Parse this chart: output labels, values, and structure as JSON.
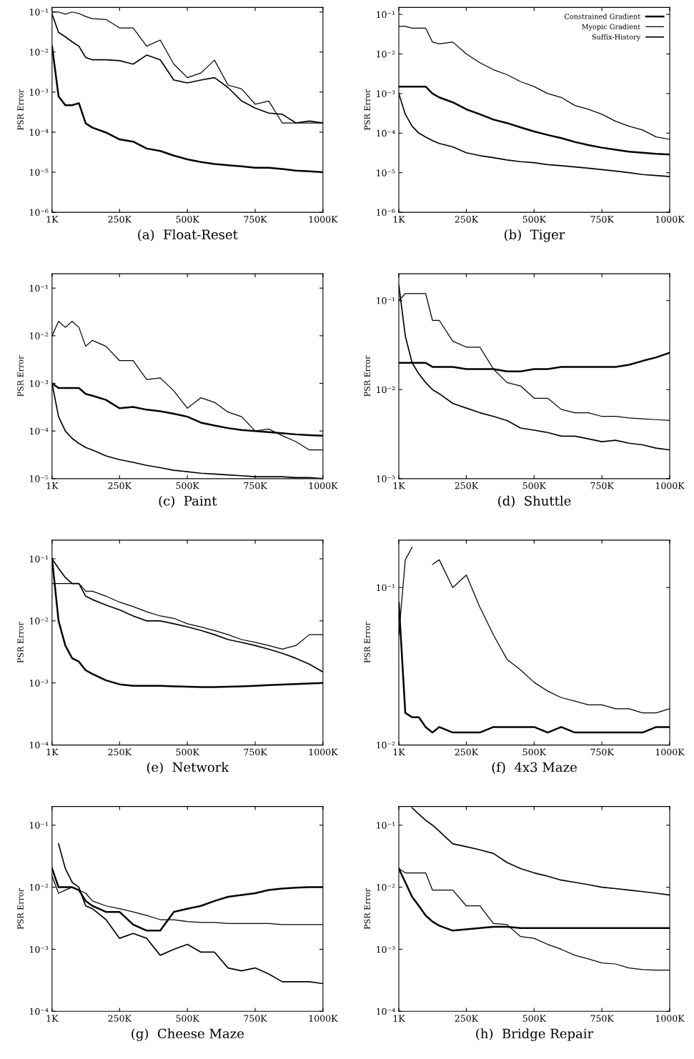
{
  "chart_data": [
    {
      "type": "line",
      "title": "(a)  Float-Reset",
      "ylabel": "PSR Error",
      "log": "y",
      "grid": false,
      "legend": false,
      "xlim": [
        1,
        1000
      ],
      "ylim": [
        1e-06,
        0.13
      ],
      "xticks": [
        {
          "value": 1,
          "label": "1K"
        },
        {
          "value": 250,
          "label": "250K"
        },
        {
          "value": 500,
          "label": "500K"
        },
        {
          "value": 750,
          "label": "750K"
        },
        {
          "value": 1000,
          "label": "1000K"
        }
      ],
      "yticks": [
        {
          "value": 1e-06,
          "label": "10⁻⁶"
        },
        {
          "value": 1e-05,
          "label": "10⁻⁵"
        },
        {
          "value": 0.0001,
          "label": "10⁻⁴"
        },
        {
          "value": 0.001,
          "label": "10⁻³"
        },
        {
          "value": 0.01,
          "label": "10⁻²"
        },
        {
          "value": 0.1,
          "label": "10⁻¹"
        }
      ],
      "x": [
        1,
        25,
        50,
        75,
        100,
        125,
        150,
        200,
        250,
        300,
        350,
        400,
        450,
        500,
        550,
        600,
        650,
        700,
        750,
        800,
        850,
        900,
        950,
        1000
      ],
      "series": [
        {
          "color": "#000000",
          "line_style": "solid",
          "values": [
            0.014,
            0.00079,
            0.00047,
            0.00047,
            0.00053,
            0.000166,
            0.00013,
            9.8e-05,
            6.6e-05,
            5.8e-05,
            3.9e-05,
            3.4e-05,
            2.6e-05,
            2.1e-05,
            1.8e-05,
            1.6e-05,
            1.5e-05,
            1.4e-05,
            1.3e-05,
            1.3e-05,
            1.2e-05,
            1.1e-05,
            1.05e-05,
            1e-05
          ]
        },
        {
          "color": "#000000",
          "line_style": "solid",
          "values": [
            0.1,
            0.1,
            0.088,
            0.1,
            0.092,
            0.077,
            0.068,
            0.065,
            0.04,
            0.04,
            0.014,
            0.02,
            0.005,
            0.0023,
            0.003,
            0.0063,
            0.0015,
            0.0012,
            0.0005,
            0.0006,
            0.00017,
            0.00017,
            0.00017,
            0.00017
          ]
        },
        {
          "color": "#000000",
          "line_style": "solid",
          "values": [
            0.088,
            0.031,
            0.024,
            0.018,
            0.014,
            0.0073,
            0.0064,
            0.0064,
            0.0061,
            0.005,
            0.0084,
            0.0064,
            0.002,
            0.0017,
            0.002,
            0.0023,
            0.0013,
            0.0006,
            0.0004,
            0.0003,
            0.00028,
            0.00017,
            0.00019,
            0.00017
          ]
        }
      ]
    },
    {
      "type": "line",
      "title": "(b)  Tiger",
      "ylabel": "PSR Error",
      "log": "y",
      "grid": false,
      "legend": "top right",
      "xlim": [
        1,
        1000
      ],
      "ylim": [
        1e-06,
        0.15
      ],
      "xticks": [
        {
          "value": 1,
          "label": "1K"
        },
        {
          "value": 250,
          "label": "250K"
        },
        {
          "value": 500,
          "label": "500K"
        },
        {
          "value": 750,
          "label": "750K"
        },
        {
          "value": 1000,
          "label": "1000K"
        }
      ],
      "yticks": [
        {
          "value": 1e-06,
          "label": "10⁻⁶"
        },
        {
          "value": 1e-05,
          "label": "10⁻⁵"
        },
        {
          "value": 0.0001,
          "label": "10⁻⁴"
        },
        {
          "value": 0.001,
          "label": "10⁻³"
        },
        {
          "value": 0.01,
          "label": "10⁻²"
        },
        {
          "value": 0.1,
          "label": "10⁻¹"
        }
      ],
      "x": [
        1,
        25,
        50,
        75,
        100,
        125,
        150,
        200,
        250,
        300,
        350,
        400,
        450,
        500,
        550,
        600,
        650,
        700,
        750,
        800,
        850,
        900,
        950,
        1000
      ],
      "series": [
        {
          "name": "Constrained Gradient",
          "color": "#000000",
          "line_style": "solid",
          "values": [
            0.0015,
            0.0015,
            0.0015,
            0.0015,
            0.0015,
            0.001,
            0.0008,
            0.0006,
            0.0004,
            0.0003,
            0.00022,
            0.00018,
            0.00014,
            0.00011,
            9e-05,
            7.5e-05,
            6e-05,
            5e-05,
            4.3e-05,
            3.8e-05,
            3.4e-05,
            3.2e-05,
            3e-05,
            2.9e-05
          ]
        },
        {
          "name": "Myopic Gradient",
          "color": "#000000",
          "line_style": "solid",
          "values": [
            0.05,
            0.05,
            0.045,
            0.045,
            0.045,
            0.02,
            0.018,
            0.02,
            0.01,
            0.006,
            0.004,
            0.003,
            0.002,
            0.0015,
            0.001,
            0.0008,
            0.0005,
            0.0004,
            0.0003,
            0.0002,
            0.00015,
            0.00012,
            8e-05,
            7e-05
          ]
        },
        {
          "name": "Suffix-History",
          "color": "#000000",
          "line_style": "solid",
          "values": [
            0.001,
            0.0003,
            0.00015,
            0.0001,
            8e-05,
            6.5e-05,
            5.5e-05,
            4.5e-05,
            3.2e-05,
            2.7e-05,
            2.4e-05,
            2.1e-05,
            1.9e-05,
            1.8e-05,
            1.6e-05,
            1.5e-05,
            1.4e-05,
            1.3e-05,
            1.2e-05,
            1.1e-05,
            1e-05,
            9e-06,
            8.5e-06,
            8e-06
          ]
        }
      ]
    },
    {
      "type": "line",
      "title": "(c)  Paint",
      "ylabel": "PSR Error",
      "log": "y",
      "grid": false,
      "legend": false,
      "xlim": [
        1,
        1000
      ],
      "ylim": [
        1e-05,
        0.2
      ],
      "xticks": [
        {
          "value": 1,
          "label": "1K"
        },
        {
          "value": 250,
          "label": "250K"
        },
        {
          "value": 500,
          "label": "500K"
        },
        {
          "value": 750,
          "label": "750K"
        },
        {
          "value": 1000,
          "label": "1000K"
        }
      ],
      "yticks": [
        {
          "value": 1e-05,
          "label": "10⁻⁵"
        },
        {
          "value": 0.0001,
          "label": "10⁻⁴"
        },
        {
          "value": 0.001,
          "label": "10⁻³"
        },
        {
          "value": 0.01,
          "label": "10⁻²"
        },
        {
          "value": 0.1,
          "label": "10⁻¹"
        }
      ],
      "x": [
        1,
        25,
        50,
        75,
        100,
        125,
        150,
        200,
        250,
        300,
        350,
        400,
        450,
        500,
        550,
        600,
        650,
        700,
        750,
        800,
        850,
        900,
        950,
        1000
      ],
      "series": [
        {
          "color": "#000000",
          "line_style": "solid",
          "values": [
            0.001,
            0.0008,
            0.0008,
            0.0008,
            0.0008,
            0.0006,
            0.00055,
            0.00045,
            0.0003,
            0.00032,
            0.00028,
            0.00026,
            0.00023,
            0.0002,
            0.00015,
            0.00013,
            0.000115,
            0.000105,
            0.0001,
            9.5e-05,
            9e-05,
            8.5e-05,
            8.2e-05,
            8e-05
          ]
        },
        {
          "color": "#000000",
          "line_style": "solid",
          "values": [
            0.01,
            0.02,
            0.015,
            0.02,
            0.015,
            0.006,
            0.008,
            0.006,
            0.003,
            0.003,
            0.0012,
            0.0013,
            0.0007,
            0.0003,
            0.0005,
            0.0004,
            0.00025,
            0.0002,
            0.0001,
            0.00011,
            8e-05,
            6e-05,
            4e-05,
            4e-05
          ]
        },
        {
          "color": "#000000",
          "line_style": "solid",
          "values": [
            0.001,
            0.0002,
            0.0001,
            7e-05,
            5.5e-05,
            4.5e-05,
            4e-05,
            3e-05,
            2.5e-05,
            2.2e-05,
            1.9e-05,
            1.7e-05,
            1.5e-05,
            1.4e-05,
            1.3e-05,
            1.25e-05,
            1.2e-05,
            1.15e-05,
            1.1e-05,
            1.1e-05,
            1.1e-05,
            1.05e-05,
            1.05e-05,
            1e-05
          ]
        }
      ]
    },
    {
      "type": "line",
      "title": "(d)  Shuttle",
      "ylabel": "PSR Error",
      "log": "y",
      "grid": false,
      "legend": false,
      "xlim": [
        1,
        1000
      ],
      "ylim": [
        0.001,
        0.2
      ],
      "xticks": [
        {
          "value": 1,
          "label": "1K"
        },
        {
          "value": 250,
          "label": "250K"
        },
        {
          "value": 500,
          "label": "500K"
        },
        {
          "value": 750,
          "label": "750K"
        },
        {
          "value": 1000,
          "label": "1000K"
        }
      ],
      "yticks": [
        {
          "value": 0.001,
          "label": "10⁻³"
        },
        {
          "value": 0.01,
          "label": "10⁻²"
        },
        {
          "value": 0.1,
          "label": "10⁻¹"
        }
      ],
      "x": [
        1,
        25,
        50,
        75,
        100,
        125,
        150,
        200,
        250,
        300,
        350,
        400,
        450,
        500,
        550,
        600,
        650,
        700,
        750,
        800,
        850,
        900,
        950,
        1000
      ],
      "series": [
        {
          "color": "#000000",
          "line_style": "solid",
          "values": [
            0.02,
            0.02,
            0.02,
            0.02,
            0.02,
            0.018,
            0.018,
            0.018,
            0.017,
            0.017,
            0.017,
            0.016,
            0.016,
            0.017,
            0.017,
            0.018,
            0.018,
            0.018,
            0.018,
            0.018,
            0.019,
            0.021,
            0.023,
            0.026
          ]
        },
        {
          "color": "#000000",
          "line_style": "solid",
          "values": [
            0.1,
            0.12,
            0.12,
            0.12,
            0.12,
            0.06,
            0.06,
            0.035,
            0.03,
            0.03,
            0.017,
            0.012,
            0.011,
            0.008,
            0.008,
            0.006,
            0.0055,
            0.0055,
            0.005,
            0.005,
            0.0048,
            0.0047,
            0.0046,
            0.0045
          ]
        },
        {
          "color": "#000000",
          "line_style": "solid",
          "values": [
            0.15,
            0.04,
            0.02,
            0.015,
            0.012,
            0.01,
            0.009,
            0.007,
            0.0062,
            0.0055,
            0.005,
            0.0045,
            0.0037,
            0.0035,
            0.0033,
            0.003,
            0.003,
            0.0028,
            0.0026,
            0.0027,
            0.0025,
            0.0024,
            0.0022,
            0.0021
          ]
        }
      ]
    },
    {
      "type": "line",
      "title": "(e)  Network",
      "ylabel": "PSR Error",
      "log": "y",
      "grid": false,
      "legend": false,
      "xlim": [
        1,
        1000
      ],
      "ylim": [
        0.0001,
        0.2
      ],
      "xticks": [
        {
          "value": 1,
          "label": "1K"
        },
        {
          "value": 250,
          "label": "250K"
        },
        {
          "value": 500,
          "label": "500K"
        },
        {
          "value": 750,
          "label": "750K"
        },
        {
          "value": 1000,
          "label": "1000K"
        }
      ],
      "yticks": [
        {
          "value": 0.0001,
          "label": "10⁻⁴"
        },
        {
          "value": 0.001,
          "label": "10⁻³"
        },
        {
          "value": 0.01,
          "label": "10⁻²"
        },
        {
          "value": 0.1,
          "label": "10⁻¹"
        }
      ],
      "x": [
        1,
        25,
        50,
        75,
        100,
        125,
        150,
        200,
        250,
        300,
        350,
        400,
        450,
        500,
        550,
        600,
        650,
        700,
        750,
        800,
        850,
        900,
        950,
        1000
      ],
      "series": [
        {
          "color": "#000000",
          "line_style": "solid",
          "values": [
            0.1,
            0.01,
            0.004,
            0.0025,
            0.0022,
            0.0016,
            0.0014,
            0.0011,
            0.00095,
            0.0009,
            0.0009,
            0.0009,
            0.00088,
            0.00087,
            0.00086,
            0.00086,
            0.00087,
            0.00088,
            0.0009,
            0.00092,
            0.00094,
            0.00096,
            0.00098,
            0.001
          ]
        },
        {
          "color": "#000000",
          "line_style": "solid",
          "values": [
            0.04,
            0.04,
            0.04,
            0.04,
            0.04,
            0.03,
            0.03,
            0.025,
            0.02,
            0.017,
            0.014,
            0.012,
            0.011,
            0.009,
            0.008,
            0.007,
            0.006,
            0.005,
            0.0045,
            0.004,
            0.0035,
            0.004,
            0.006,
            0.006
          ]
        },
        {
          "color": "#000000",
          "line_style": "solid",
          "values": [
            0.1,
            0.07,
            0.05,
            0.04,
            0.04,
            0.025,
            0.022,
            0.018,
            0.015,
            0.012,
            0.01,
            0.01,
            0.009,
            0.008,
            0.007,
            0.006,
            0.005,
            0.0045,
            0.004,
            0.0035,
            0.003,
            0.0025,
            0.002,
            0.0015
          ]
        }
      ]
    },
    {
      "type": "line",
      "title": "(f)  4x3 Maze",
      "ylabel": "PSR Error",
      "log": "y",
      "grid": false,
      "legend": false,
      "xlim": [
        1,
        1000
      ],
      "ylim": [
        0.01,
        0.2
      ],
      "xticks": [
        {
          "value": 1,
          "label": "1K"
        },
        {
          "value": 250,
          "label": "250K"
        },
        {
          "value": 500,
          "label": "500K"
        },
        {
          "value": 750,
          "label": "750K"
        },
        {
          "value": 1000,
          "label": "1000K"
        }
      ],
      "yticks": [
        {
          "value": 0.01,
          "label": "10⁻²"
        },
        {
          "value": 0.1,
          "label": "10⁻¹"
        }
      ],
      "x": [
        1,
        25,
        50,
        75,
        100,
        125,
        150,
        200,
        250,
        300,
        350,
        400,
        450,
        500,
        550,
        600,
        650,
        700,
        750,
        800,
        850,
        900,
        950,
        1000
      ],
      "series": [
        {
          "color": "#000000",
          "line_style": "solid",
          "values": [
            0.08,
            0.016,
            0.015,
            0.015,
            0.013,
            0.012,
            0.013,
            0.012,
            0.012,
            0.012,
            0.013,
            0.013,
            0.013,
            0.013,
            0.012,
            0.013,
            0.012,
            0.012,
            0.012,
            0.012,
            0.012,
            0.012,
            0.013,
            0.013
          ]
        },
        {
          "color": "#000000",
          "line_style": "solid",
          "values": [
            0.05,
            0.15,
            0.18,
            null,
            null,
            0.14,
            0.15,
            0.1,
            0.12,
            0.075,
            0.05,
            0.035,
            0.03,
            0.025,
            0.022,
            0.02,
            0.019,
            0.018,
            0.018,
            0.017,
            0.017,
            0.016,
            0.016,
            0.017
          ]
        }
      ]
    },
    {
      "type": "line",
      "title": "(g)  Cheese Maze",
      "ylabel": "PSR Error",
      "log": "y",
      "grid": false,
      "legend": false,
      "xlim": [
        1,
        1000
      ],
      "ylim": [
        0.0001,
        0.2
      ],
      "xticks": [
        {
          "value": 1,
          "label": "1K"
        },
        {
          "value": 250,
          "label": "250K"
        },
        {
          "value": 500,
          "label": "500K"
        },
        {
          "value": 750,
          "label": "750K"
        },
        {
          "value": 1000,
          "label": "1000K"
        }
      ],
      "yticks": [
        {
          "value": 0.0001,
          "label": "10⁻⁴"
        },
        {
          "value": 0.001,
          "label": "10⁻³"
        },
        {
          "value": 0.01,
          "label": "10⁻²"
        },
        {
          "value": 0.1,
          "label": "10⁻¹"
        }
      ],
      "x": [
        1,
        25,
        50,
        75,
        100,
        125,
        150,
        200,
        250,
        300,
        350,
        400,
        450,
        500,
        550,
        600,
        650,
        700,
        750,
        800,
        850,
        900,
        950,
        1000
      ],
      "series": [
        {
          "color": "#000000",
          "line_style": "solid",
          "values": [
            0.02,
            0.01,
            0.01,
            0.01,
            0.009,
            0.006,
            0.005,
            0.004,
            0.004,
            0.0025,
            0.002,
            0.002,
            0.004,
            0.0045,
            0.005,
            0.006,
            0.007,
            0.0075,
            0.008,
            0.009,
            0.0095,
            0.0098,
            0.01,
            0.01
          ]
        },
        {
          "color": "#000000",
          "line_style": "solid",
          "values": [
            0.015,
            0.008,
            0.009,
            0.01,
            0.009,
            0.008,
            0.006,
            0.005,
            0.0045,
            0.004,
            0.0035,
            0.003,
            0.003,
            0.0028,
            0.0027,
            0.0027,
            0.0026,
            0.0026,
            0.0026,
            0.0026,
            0.0025,
            0.0025,
            0.0025,
            0.0025
          ]
        },
        {
          "color": "#000000",
          "line_style": "solid",
          "values": [
            null,
            0.05,
            0.02,
            0.012,
            0.01,
            0.005,
            0.0045,
            0.003,
            0.0015,
            0.0018,
            0.0015,
            0.0008,
            0.001,
            0.0012,
            0.0009,
            0.0009,
            0.0005,
            0.00045,
            0.0005,
            0.0004,
            0.0003,
            0.0003,
            0.0003,
            0.00028
          ]
        }
      ]
    },
    {
      "type": "line",
      "title": "(h)  Bridge Repair",
      "ylabel": "PSR Error",
      "log": "y",
      "grid": false,
      "legend": false,
      "xlim": [
        1,
        1000
      ],
      "ylim": [
        0.0001,
        0.2
      ],
      "xticks": [
        {
          "value": 1,
          "label": "1K"
        },
        {
          "value": 250,
          "label": "250K"
        },
        {
          "value": 500,
          "label": "500K"
        },
        {
          "value": 750,
          "label": "750K"
        },
        {
          "value": 1000,
          "label": "1000K"
        }
      ],
      "yticks": [
        {
          "value": 0.0001,
          "label": "10⁻⁴"
        },
        {
          "value": 0.001,
          "label": "10⁻³"
        },
        {
          "value": 0.01,
          "label": "10⁻²"
        },
        {
          "value": 0.1,
          "label": "10⁻¹"
        }
      ],
      "x": [
        1,
        25,
        50,
        75,
        100,
        125,
        150,
        200,
        250,
        300,
        350,
        400,
        450,
        500,
        550,
        600,
        650,
        700,
        750,
        800,
        850,
        900,
        950,
        1000
      ],
      "series": [
        {
          "color": "#000000",
          "line_style": "solid",
          "values": [
            0.02,
            0.012,
            0.007,
            0.005,
            0.0035,
            0.0028,
            0.0024,
            0.002,
            0.0021,
            0.0022,
            0.0023,
            0.0023,
            0.0022,
            0.0022,
            0.0022,
            0.0022,
            0.0022,
            0.0022,
            0.0022,
            0.0022,
            0.0022,
            0.0022,
            0.0022,
            0.0022
          ]
        },
        {
          "color": "#000000",
          "line_style": "solid",
          "values": [
            0.02,
            0.017,
            0.017,
            0.017,
            0.017,
            0.009,
            0.009,
            0.009,
            0.005,
            0.005,
            0.0026,
            0.0025,
            0.0016,
            0.0015,
            0.0012,
            0.001,
            0.0008,
            0.0007,
            0.0006,
            0.00058,
            0.0005,
            0.00047,
            0.00046,
            0.00046
          ]
        },
        {
          "color": "#000000",
          "line_style": "solid",
          "values": [
            null,
            null,
            0.19,
            0.15,
            0.12,
            0.1,
            0.08,
            0.05,
            0.045,
            0.04,
            0.035,
            0.025,
            0.02,
            0.017,
            0.015,
            0.013,
            0.012,
            0.011,
            0.01,
            0.0095,
            0.009,
            0.0085,
            0.008,
            0.0075
          ]
        }
      ]
    }
  ]
}
